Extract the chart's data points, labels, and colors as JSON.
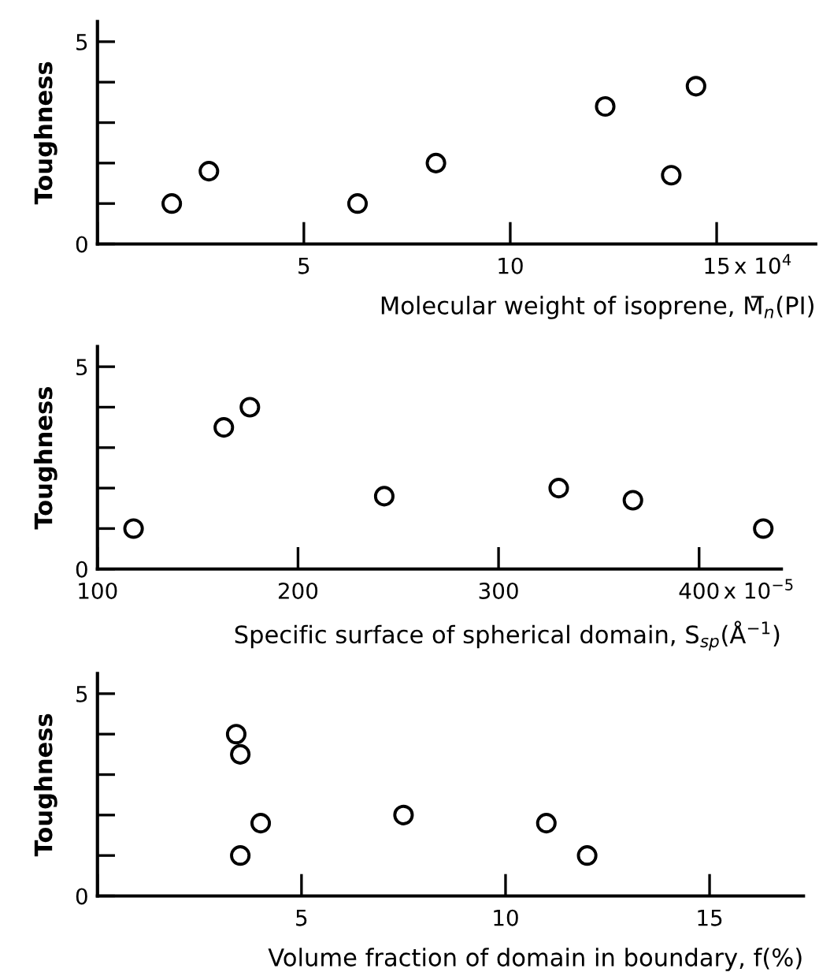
{
  "chart_data": [
    {
      "type": "scatter",
      "xlabel": "Molecular weight of isoprene, M̅$_{n}$(PI)",
      "ylabel": "Toughness",
      "marker": "circle",
      "xlim": [
        0,
        17.4
      ],
      "ylim": [
        0,
        5.5
      ],
      "xticks": [
        {
          "value": 0,
          "label": null
        },
        5,
        10,
        15
      ],
      "annotations": [
        "x 10$^{4}$"
      ],
      "yticks": [
        0,
        {
          "value": 1,
          "label": null
        },
        {
          "value": 2,
          "label": null
        },
        {
          "value": 3,
          "label": null
        },
        {
          "value": 4,
          "label": null
        },
        5
      ],
      "series": [
        {
          "color": "#000000",
          "x": [
            1.8,
            2.7,
            6.3,
            8.2,
            12.3,
            13.9,
            14.5
          ],
          "values": [
            1.0,
            1.8,
            1.0,
            2.0,
            3.4,
            1.7,
            3.9
          ]
        }
      ]
    },
    {
      "type": "scatter",
      "xlabel": "Specific surface of spherical domain, S$_{sp}$(Å$^{−1}$)",
      "ylabel": "Toughness",
      "marker": "circle",
      "xlim": [
        100,
        441
      ],
      "ylim": [
        0,
        5.5
      ],
      "xticks": [
        100,
        200,
        300,
        400
      ],
      "annotations": [
        "x 10$^{−5}$"
      ],
      "yticks": [
        0,
        {
          "value": 1,
          "label": null
        },
        {
          "value": 2,
          "label": null
        },
        {
          "value": 3,
          "label": null
        },
        {
          "value": 4,
          "label": null
        },
        5
      ],
      "series": [
        {
          "color": "#000000",
          "x": [
            118,
            163,
            176,
            243,
            330,
            367,
            432
          ],
          "values": [
            1.0,
            3.5,
            4.0,
            1.8,
            2.0,
            1.7,
            1.0
          ]
        }
      ]
    },
    {
      "type": "scatter",
      "xlabel": "Volume fraction of domain in boundary, f(%)",
      "ylabel": "Toughness",
      "marker": "circle",
      "xlim": [
        0,
        17.3
      ],
      "ylim": [
        0,
        5.5
      ],
      "xticks": [
        {
          "value": 0,
          "label": null
        },
        5,
        10,
        15
      ],
      "yticks": [
        0,
        {
          "value": 1,
          "label": null
        },
        {
          "value": 2,
          "label": null
        },
        {
          "value": 3,
          "label": null
        },
        {
          "value": 4,
          "label": null
        },
        5
      ],
      "series": [
        {
          "color": "#000000",
          "x": [
            3.4,
            3.5,
            4.0,
            3.5,
            7.5,
            11.0,
            12.0
          ],
          "values": [
            4.0,
            3.5,
            1.8,
            1.0,
            2.0,
            1.8,
            1.0
          ]
        }
      ]
    }
  ]
}
